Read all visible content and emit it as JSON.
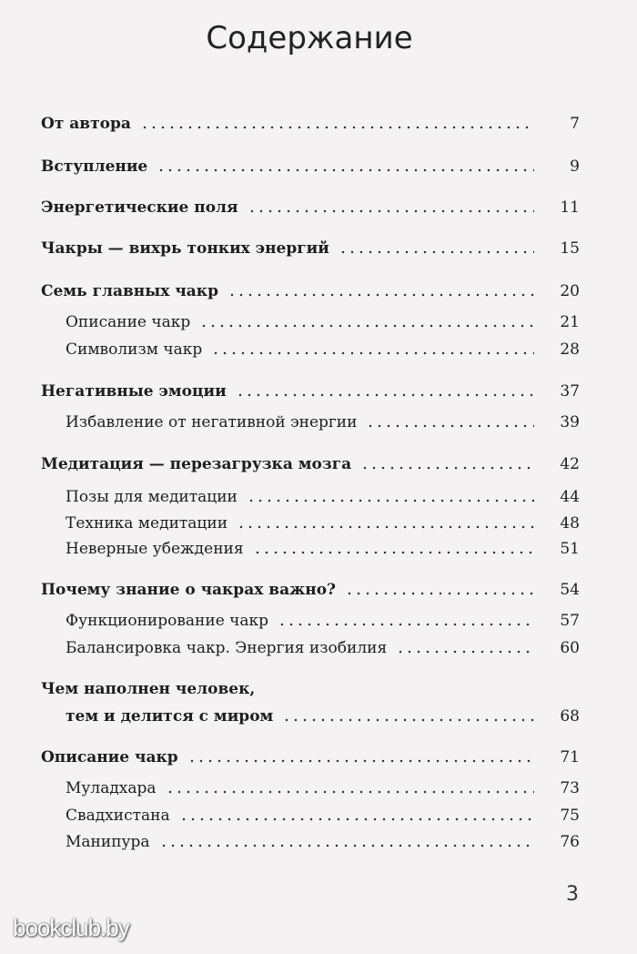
{
  "title": "Содержание",
  "entries": [
    {
      "label": "От автора",
      "page": "7",
      "level": 1
    },
    {
      "label": "Вступление",
      "page": "9",
      "level": 1
    },
    {
      "label": "Энергетические поля",
      "page": "11",
      "level": 1
    },
    {
      "label": "Чакры — вихрь тонких энергий",
      "page": "15",
      "level": 1
    },
    {
      "label": "Семь главных чакр",
      "page": "20",
      "level": 1
    },
    {
      "label": "Описание чакр",
      "page": "21",
      "level": 2
    },
    {
      "label": "Символизм чакр",
      "page": "28",
      "level": 2
    },
    {
      "label": "Негативные эмоции",
      "page": "37",
      "level": 1
    },
    {
      "label": "Избавление от негативной энергии",
      "page": "39",
      "level": 2
    },
    {
      "label": "Медитация — перезагрузка мозга",
      "page": "42",
      "level": 1
    },
    {
      "label": "Позы для медитации",
      "page": "44",
      "level": 2
    },
    {
      "label": "Техника медитации",
      "page": "48",
      "level": 2
    },
    {
      "label": "Неверные убеждения",
      "page": "51",
      "level": 2
    },
    {
      "label": "Почему знание о чакрах важно?",
      "page": "54",
      "level": 1
    },
    {
      "label": "Функционирование чакр",
      "page": "57",
      "level": 2
    },
    {
      "label": "Балансировка чакр. Энергия изобилия",
      "page": "60",
      "level": 2
    },
    {
      "label_line1": "Чем наполнен человек,",
      "label": "тем и делится с миром",
      "page": "68",
      "level": 1
    },
    {
      "label": "Описание чакр",
      "page": "71",
      "level": 1
    },
    {
      "label": "Муладхара",
      "page": "73",
      "level": 2
    },
    {
      "label": "Свадхистана",
      "page": "75",
      "level": 2
    },
    {
      "label": "Манипура",
      "page": "76",
      "level": 2
    }
  ],
  "page_number": "3",
  "watermark": "bookclub.by"
}
